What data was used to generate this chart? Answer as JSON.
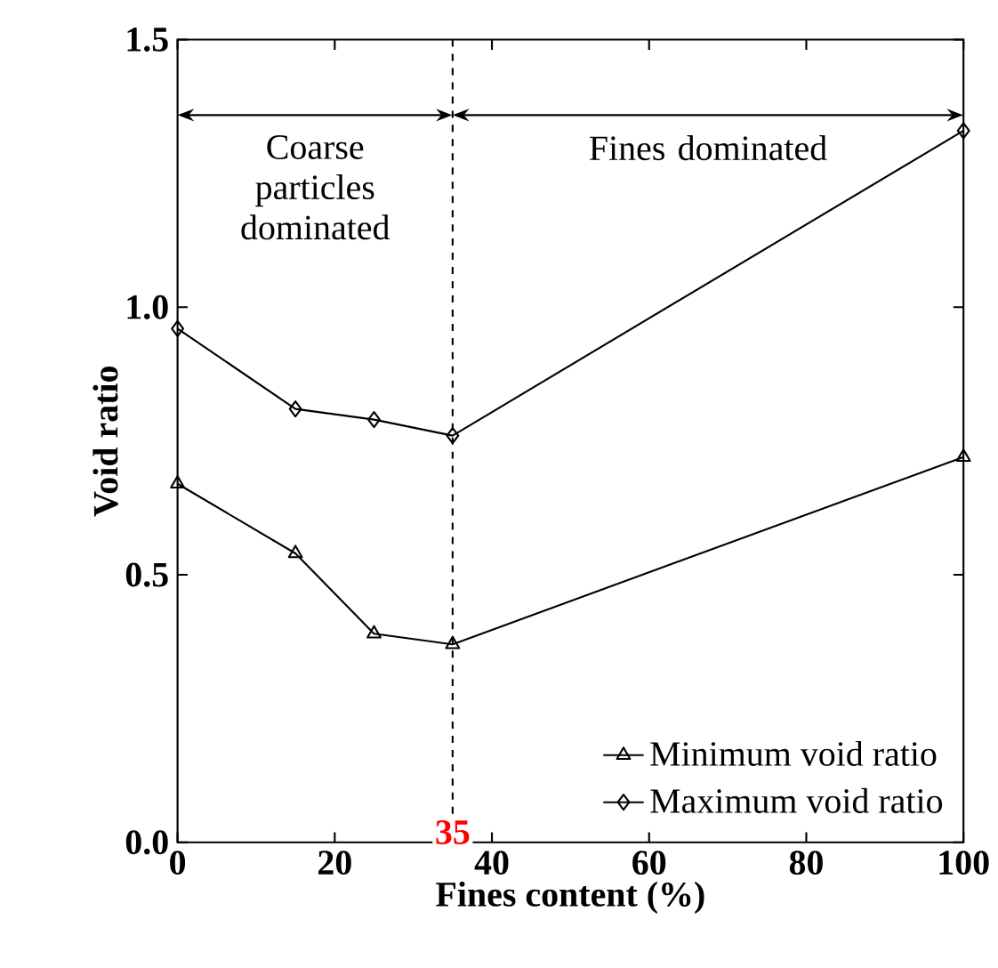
{
  "chart_data": {
    "type": "line",
    "xlabel": "Fines content (%)",
    "ylabel": "Void ratio",
    "x": [
      0,
      15,
      25,
      35,
      100
    ],
    "series": [
      {
        "name": "Minimum void ratio",
        "color": "#000000",
        "marker": "triangle",
        "values": [
          0.67,
          0.54,
          0.39,
          0.37,
          0.72
        ]
      },
      {
        "name": "Maximum void ratio",
        "color": "#000000",
        "marker": "diamond",
        "values": [
          0.96,
          0.81,
          0.79,
          0.76,
          1.33
        ]
      }
    ],
    "xlim": [
      0,
      100
    ],
    "xticks": [
      0,
      20,
      40,
      60,
      80,
      100
    ],
    "ylim": [
      0,
      1.5
    ],
    "yticks": [
      {
        "value": 0,
        "label": "0.0"
      },
      {
        "value": 0.5,
        "label": "0.5"
      },
      {
        "value": 1,
        "label": "1.0"
      },
      {
        "value": 1.5,
        "label": "1.5"
      }
    ],
    "ref_lines": [
      {
        "axis": "x",
        "value": 35,
        "label": "35",
        "color": "#000000",
        "line_style": "dashed"
      }
    ],
    "annotations": [
      "Coarse particles dominated",
      "Fines dominated"
    ],
    "legend": "bottom right",
    "grid": false,
    "line_style": "solid"
  }
}
